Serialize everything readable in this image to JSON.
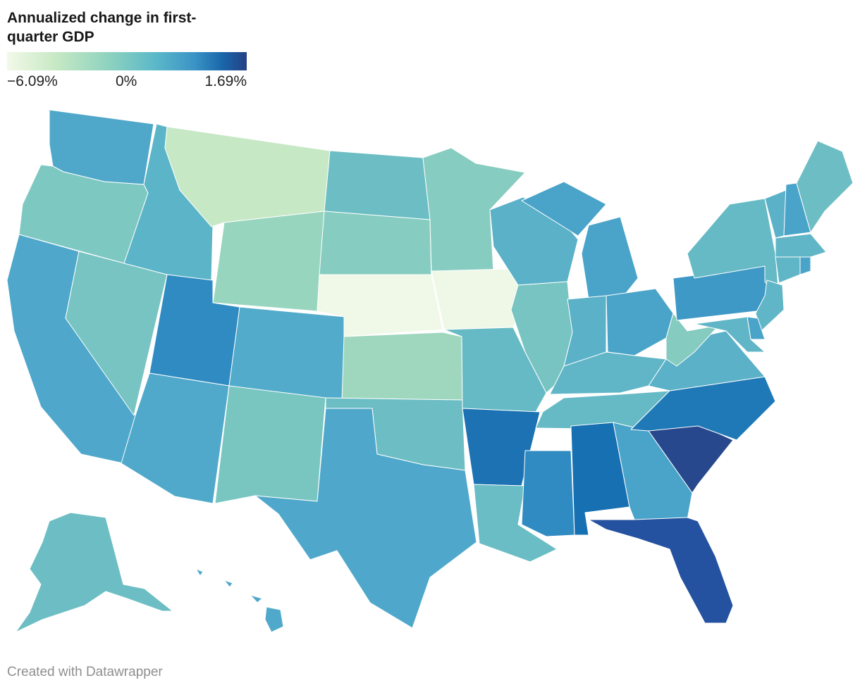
{
  "title": "Annualized change in first-quarter GDP",
  "legend": {
    "min_label": "−6.09%",
    "mid_label": "0%",
    "max_label": "1.69%",
    "min_value": -6.09,
    "mid_value": 0,
    "max_value": 1.69
  },
  "credit": "Created with Datawrapper",
  "chart_data": {
    "type": "choropleth",
    "metric": "Annualized change in first-quarter GDP (%)",
    "color_scale": {
      "min": -6.09,
      "max": 1.69,
      "stops": [
        "#f2f9e8",
        "#c8e9c5",
        "#8fd3bf",
        "#5bb8c9",
        "#3b94c6",
        "#1966aa",
        "#263f86"
      ]
    },
    "states": {
      "WA": "#4fa8c9",
      "OR": "#7ec8c2",
      "CA": "#4fa8cb",
      "NV": "#77c4c2",
      "ID": "#5bb4c7",
      "MT": "#c6e8c5",
      "WY": "#98d5bf",
      "UT": "#2f8bc1",
      "AZ": "#50a9cb",
      "CO": "#52abcb",
      "NM": "#79c6c1",
      "ND": "#6cbec4",
      "SD": "#86ccc0",
      "NE": "#f0f8e8",
      "KS": "#9ed7be",
      "OK": "#6dbec4",
      "TX": "#4fa8cb",
      "MN": "#86ccc0",
      "IA": "#eff8e7",
      "MO": "#66bac5",
      "AR": "#1c72b3",
      "LA": "#6abdc4",
      "WI": "#5ab1c8",
      "IL": "#77c4c2",
      "MI": "#4aa3c9",
      "IN": "#5ab1c8",
      "OH": "#4aa4c9",
      "KY": "#60b6c6",
      "TN": "#66bac5",
      "MS": "#2f8bc1",
      "AL": "#1770b1",
      "GA": "#4aa4c9",
      "FL": "#2452a0",
      "SC": "#28488d",
      "NC": "#2079b7",
      "VA": "#5ab1c8",
      "WV": "#85cbc0",
      "PA": "#3f99c6",
      "NY": "#66bac5",
      "VT": "#5ab1c8",
      "NH": "#4aa4c9",
      "ME": "#6dbec4",
      "MA": "#60b6c6",
      "CT": "#60b6c6",
      "RI": "#4aa4c9",
      "NJ": "#60b6c6",
      "DE": "#4aa4c9",
      "MD": "#60b6c6",
      "AK": "#6dbec4",
      "HI": "#50a9cb"
    }
  }
}
